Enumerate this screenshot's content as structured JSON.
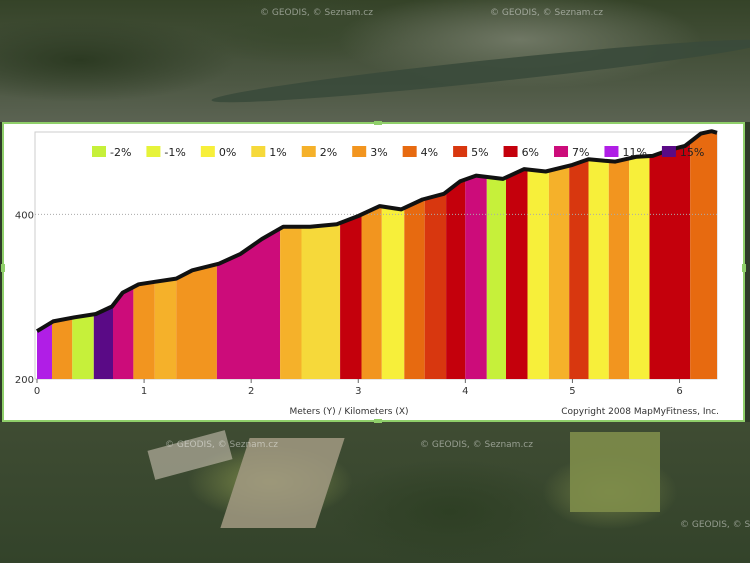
{
  "chart_data": {
    "type": "area",
    "legend": [
      {
        "label": "-2%",
        "color": "#c6f03a"
      },
      {
        "label": "-1%",
        "color": "#e6f33a"
      },
      {
        "label": "0%",
        "color": "#f7ef3a"
      },
      {
        "label": "1%",
        "color": "#f6d93a"
      },
      {
        "label": "2%",
        "color": "#f5b12a"
      },
      {
        "label": "3%",
        "color": "#f2951f"
      },
      {
        "label": "4%",
        "color": "#e76a10"
      },
      {
        "label": "5%",
        "color": "#d8370f"
      },
      {
        "label": "6%",
        "color": "#c4000c"
      },
      {
        "label": "7%",
        "color": "#cc0c7a"
      },
      {
        "label": "11%",
        "color": "#b01ee6"
      },
      {
        "label": "15%",
        "color": "#5a0a86"
      }
    ],
    "xlabel": "Meters (Y) / Kilometers (X)",
    "xlim": [
      0,
      6.35
    ],
    "ylim": [
      200,
      500
    ],
    "xticks": [
      "0",
      "1",
      "2",
      "3",
      "4",
      "5",
      "6"
    ],
    "yticks": [
      "200",
      "400"
    ],
    "profile": [
      {
        "x": 0.0,
        "y": 258
      },
      {
        "x": 0.15,
        "y": 270
      },
      {
        "x": 0.35,
        "y": 275
      },
      {
        "x": 0.55,
        "y": 279
      },
      {
        "x": 0.7,
        "y": 288
      },
      {
        "x": 0.8,
        "y": 305
      },
      {
        "x": 0.95,
        "y": 315
      },
      {
        "x": 1.1,
        "y": 318
      },
      {
        "x": 1.3,
        "y": 322
      },
      {
        "x": 1.45,
        "y": 332
      },
      {
        "x": 1.7,
        "y": 340
      },
      {
        "x": 1.9,
        "y": 352
      },
      {
        "x": 2.1,
        "y": 370
      },
      {
        "x": 2.3,
        "y": 385
      },
      {
        "x": 2.55,
        "y": 385
      },
      {
        "x": 2.8,
        "y": 388
      },
      {
        "x": 3.0,
        "y": 398
      },
      {
        "x": 3.2,
        "y": 410
      },
      {
        "x": 3.4,
        "y": 406
      },
      {
        "x": 3.6,
        "y": 418
      },
      {
        "x": 3.8,
        "y": 425
      },
      {
        "x": 3.95,
        "y": 440
      },
      {
        "x": 4.1,
        "y": 447
      },
      {
        "x": 4.35,
        "y": 443
      },
      {
        "x": 4.55,
        "y": 455
      },
      {
        "x": 4.75,
        "y": 452
      },
      {
        "x": 5.0,
        "y": 460
      },
      {
        "x": 5.15,
        "y": 467
      },
      {
        "x": 5.3,
        "y": 465
      },
      {
        "x": 5.4,
        "y": 464
      },
      {
        "x": 5.6,
        "y": 470
      },
      {
        "x": 5.75,
        "y": 471
      },
      {
        "x": 5.9,
        "y": 478
      },
      {
        "x": 6.05,
        "y": 483
      },
      {
        "x": 6.2,
        "y": 498
      },
      {
        "x": 6.3,
        "y": 501
      },
      {
        "x": 6.35,
        "y": 499
      }
    ],
    "segments": [
      {
        "x0": 0.0,
        "x1": 0.14,
        "grade": "11%"
      },
      {
        "x0": 0.14,
        "x1": 0.33,
        "grade": "3%"
      },
      {
        "x0": 0.33,
        "x1": 0.53,
        "grade": "-2%"
      },
      {
        "x0": 0.53,
        "x1": 0.71,
        "grade": "15%"
      },
      {
        "x0": 0.71,
        "x1": 0.9,
        "grade": "7%"
      },
      {
        "x0": 0.9,
        "x1": 1.1,
        "grade": "3%"
      },
      {
        "x0": 1.1,
        "x1": 1.3,
        "grade": "2%"
      },
      {
        "x0": 1.3,
        "x1": 1.68,
        "grade": "3%"
      },
      {
        "x0": 1.68,
        "x1": 2.27,
        "grade": "7%"
      },
      {
        "x0": 2.27,
        "x1": 2.47,
        "grade": "2%"
      },
      {
        "x0": 2.47,
        "x1": 2.83,
        "grade": "1%"
      },
      {
        "x0": 2.83,
        "x1": 3.03,
        "grade": "6%"
      },
      {
        "x0": 3.03,
        "x1": 3.22,
        "grade": "3%"
      },
      {
        "x0": 3.22,
        "x1": 3.43,
        "grade": "0%"
      },
      {
        "x0": 3.43,
        "x1": 3.62,
        "grade": "4%"
      },
      {
        "x0": 3.62,
        "x1": 3.82,
        "grade": "5%"
      },
      {
        "x0": 3.82,
        "x1": 4.0,
        "grade": "6%"
      },
      {
        "x0": 4.0,
        "x1": 4.2,
        "grade": "7%"
      },
      {
        "x0": 4.2,
        "x1": 4.38,
        "grade": "-2%"
      },
      {
        "x0": 4.38,
        "x1": 4.58,
        "grade": "6%"
      },
      {
        "x0": 4.58,
        "x1": 4.78,
        "grade": "0%"
      },
      {
        "x0": 4.78,
        "x1": 4.97,
        "grade": "2%"
      },
      {
        "x0": 4.97,
        "x1": 5.15,
        "grade": "5%"
      },
      {
        "x0": 5.15,
        "x1": 5.34,
        "grade": "0%"
      },
      {
        "x0": 5.34,
        "x1": 5.53,
        "grade": "3%"
      },
      {
        "x0": 5.53,
        "x1": 5.72,
        "grade": "0%"
      },
      {
        "x0": 5.72,
        "x1": 6.1,
        "grade": "6%"
      },
      {
        "x0": 6.1,
        "x1": 6.35,
        "grade": "4%"
      }
    ],
    "grid": true,
    "legend_position": "top"
  },
  "copyright": "Copyright 2008 MapMyFitness, Inc.",
  "map_watermark": "© GEODIS, © Seznam.cz"
}
